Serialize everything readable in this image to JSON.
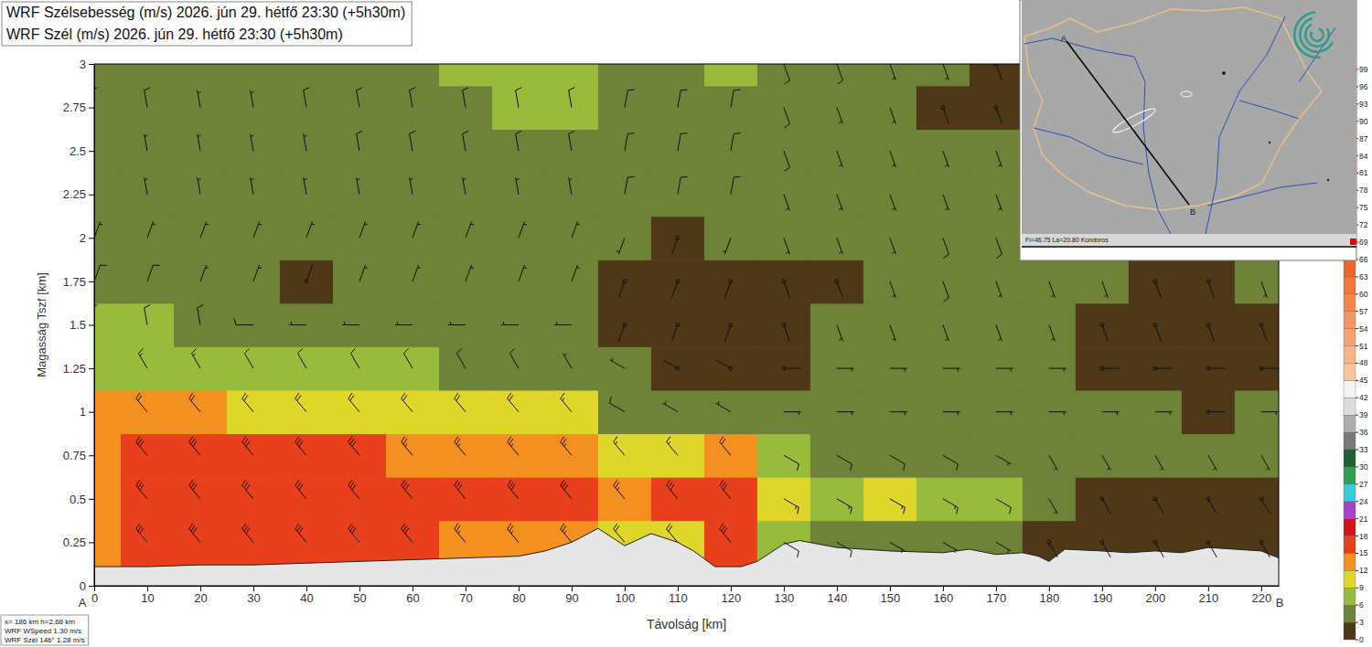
{
  "chart_data": {
    "type": "cross_section",
    "title": "WRF Szélsebesség (m/s) 2026. jún 29. hétfő 23:30 (+5h30m)",
    "subtitle": "WRF Szél (m/s) 2026. jún 29. hétfő 23:30 (+5h30m)",
    "x_label": "Távolság [km]",
    "y_label": "Magasság Tszf [km]",
    "section_labels": [
      "A",
      "B"
    ],
    "inset_label": "Fi=46.75 La=20.80 Kondoros",
    "info": [
      "x= 186 km h=2.68 km",
      "WRF WSpeed 1.30 m/s",
      "WRF Szél 146° 1.28 m/s"
    ],
    "grid": false,
    "xlim": [
      0,
      223.3
    ],
    "xticks": [
      0,
      10,
      20,
      30,
      40,
      50,
      60,
      70,
      80,
      90,
      100,
      110,
      120,
      130,
      140,
      150,
      160,
      170,
      180,
      190,
      200,
      210,
      220
    ],
    "ylim": [
      0,
      3
    ],
    "yticks": [
      0,
      0.25,
      0.5,
      0.75,
      1,
      1.25,
      1.5,
      1.75,
      2,
      2.25,
      2.5,
      2.75,
      3
    ],
    "x": [
      0,
      10,
      20,
      30,
      40,
      50,
      60,
      70,
      80,
      90,
      100,
      110,
      120,
      130,
      140,
      150,
      160,
      170,
      180,
      190,
      200,
      210,
      220
    ],
    "y": [
      0.25,
      0.5,
      0.75,
      1,
      1.25,
      1.5,
      1.75,
      2,
      2.25,
      2.5,
      2.75,
      3
    ],
    "values": [
      [
        14,
        15,
        15,
        15,
        15,
        15,
        15,
        14,
        13,
        13,
        11,
        10,
        15,
        6,
        5,
        4,
        4,
        4,
        2,
        2,
        2,
        2,
        2
      ],
      [
        14,
        15,
        16,
        16,
        16,
        17,
        17,
        16,
        16,
        15,
        14,
        15,
        16,
        9,
        8,
        9,
        8,
        7,
        3,
        2,
        2,
        2,
        2
      ],
      [
        14,
        15,
        15,
        15,
        15,
        15,
        14,
        13,
        13,
        13,
        9,
        9,
        12,
        6,
        5,
        5,
        5,
        4,
        3,
        3,
        3,
        3,
        3
      ],
      [
        12,
        12,
        12,
        11,
        11,
        11,
        10,
        10,
        10,
        9,
        5,
        4,
        4,
        4,
        4,
        4,
        3,
        3,
        3,
        3,
        3,
        2,
        3
      ],
      [
        8,
        8,
        8,
        7,
        7,
        6,
        6,
        5,
        5,
        4,
        3,
        2,
        2,
        2,
        3,
        3,
        3,
        3,
        3,
        2,
        2,
        1,
        2
      ],
      [
        6,
        6,
        5,
        5,
        4,
        4,
        4,
        4,
        4,
        3,
        2,
        2,
        2,
        2,
        3,
        4,
        4,
        3,
        3,
        2,
        2,
        1,
        2
      ],
      [
        5,
        5,
        4,
        4,
        2,
        4,
        4,
        4,
        4,
        3,
        2,
        2,
        2,
        2,
        2,
        4,
        5,
        4,
        3,
        3,
        2,
        2,
        3
      ],
      [
        4,
        4,
        3,
        3,
        3,
        3,
        3,
        3,
        3,
        3,
        3,
        2,
        3,
        3,
        3,
        4,
        5,
        5,
        4,
        3,
        2,
        2,
        3
      ],
      [
        4,
        4,
        3,
        3,
        3,
        4,
        4,
        4,
        4,
        4,
        5,
        5,
        5,
        4,
        4,
        4,
        4,
        4,
        3,
        2,
        2,
        3,
        3
      ],
      [
        4,
        4,
        3,
        3,
        4,
        5,
        5,
        5,
        5,
        5,
        5,
        5,
        5,
        5,
        4,
        4,
        3,
        3,
        2,
        3,
        3,
        3,
        3
      ],
      [
        5,
        5,
        4,
        4,
        5,
        5,
        5,
        5,
        6,
        6,
        5,
        5,
        5,
        5,
        4,
        3,
        2,
        2,
        2,
        3,
        3,
        4,
        4
      ],
      [
        5,
        5,
        5,
        5,
        5,
        5,
        5,
        6,
        7,
        6,
        5,
        5,
        6,
        5,
        5,
        4,
        3,
        2,
        2,
        3,
        4,
        4,
        4
      ]
    ],
    "direction": [
      [
        320,
        320,
        320,
        320,
        320,
        320,
        320,
        320,
        320,
        320,
        320,
        320,
        320,
        120,
        120,
        120,
        120,
        120,
        150,
        150,
        150,
        150,
        150
      ],
      [
        320,
        320,
        320,
        320,
        320,
        320,
        320,
        320,
        320,
        320,
        320,
        320,
        320,
        120,
        120,
        120,
        120,
        120,
        150,
        150,
        150,
        150,
        150
      ],
      [
        320,
        320,
        320,
        320,
        320,
        320,
        320,
        320,
        320,
        320,
        320,
        320,
        320,
        120,
        120,
        120,
        120,
        120,
        150,
        150,
        150,
        150,
        150
      ],
      [
        320,
        320,
        320,
        320,
        320,
        320,
        320,
        320,
        320,
        320,
        300,
        300,
        300,
        90,
        90,
        90,
        90,
        90,
        90,
        90,
        90,
        90,
        90
      ],
      [
        330,
        330,
        330,
        330,
        330,
        330,
        330,
        330,
        330,
        330,
        300,
        300,
        300,
        90,
        90,
        90,
        90,
        90,
        90,
        90,
        90,
        90,
        90
      ],
      [
        350,
        350,
        350,
        270,
        270,
        270,
        270,
        270,
        270,
        270,
        200,
        200,
        200,
        160,
        160,
        160,
        160,
        160,
        160,
        160,
        160,
        160,
        160
      ],
      [
        20,
        20,
        20,
        20,
        20,
        20,
        20,
        20,
        20,
        20,
        200,
        200,
        200,
        160,
        160,
        160,
        160,
        160,
        160,
        160,
        160,
        160,
        160
      ],
      [
        20,
        20,
        20,
        20,
        20,
        20,
        20,
        20,
        20,
        20,
        200,
        200,
        200,
        160,
        160,
        160,
        160,
        160,
        160,
        160,
        160,
        160,
        160
      ],
      [
        350,
        350,
        350,
        350,
        350,
        350,
        350,
        350,
        350,
        350,
        10,
        10,
        10,
        160,
        160,
        160,
        160,
        160,
        160,
        160,
        160,
        160,
        160
      ],
      [
        350,
        350,
        350,
        350,
        350,
        350,
        350,
        350,
        350,
        350,
        10,
        10,
        10,
        160,
        160,
        160,
        160,
        160,
        160,
        160,
        160,
        160,
        160
      ],
      [
        350,
        350,
        350,
        350,
        350,
        350,
        350,
        350,
        350,
        350,
        10,
        10,
        10,
        160,
        160,
        160,
        160,
        160,
        160,
        160,
        160,
        160,
        160
      ],
      [
        350,
        350,
        350,
        350,
        350,
        350,
        350,
        350,
        350,
        350,
        10,
        10,
        10,
        160,
        160,
        160,
        160,
        160,
        160,
        160,
        160,
        160,
        160
      ]
    ],
    "terrain": {
      "x": [
        0,
        10,
        20,
        30,
        40,
        50,
        60,
        70,
        80,
        85,
        90,
        95,
        100,
        105,
        110,
        113,
        117,
        122,
        125,
        130,
        133,
        140,
        150,
        160,
        165,
        170,
        175,
        178,
        180,
        183,
        190,
        195,
        200,
        205,
        210,
        215,
        220,
        223.3
      ],
      "height": [
        0.11,
        0.11,
        0.12,
        0.12,
        0.13,
        0.14,
        0.15,
        0.16,
        0.17,
        0.2,
        0.25,
        0.33,
        0.23,
        0.3,
        0.25,
        0.2,
        0.11,
        0.11,
        0.14,
        0.24,
        0.26,
        0.22,
        0.2,
        0.19,
        0.21,
        0.18,
        0.19,
        0.17,
        0.14,
        0.21,
        0.2,
        0.19,
        0.2,
        0.19,
        0.22,
        0.21,
        0.2,
        0.16
      ]
    },
    "colorbar": {
      "range": [
        0,
        99
      ],
      "ticks": [
        0,
        3,
        6,
        9,
        12,
        15,
        18,
        21,
        24,
        27,
        30,
        33,
        36,
        39,
        42,
        45,
        48,
        51,
        54,
        57,
        60,
        63,
        66,
        69,
        72,
        75,
        78,
        81,
        84,
        87,
        90,
        93,
        96,
        99
      ],
      "colors": [
        "#4e3818",
        "#6e8238",
        "#98bb3c",
        "#dfd62a",
        "#f49020",
        "#e8401c",
        "#d4141c",
        "#a742c9",
        "#37cbdc",
        "#2e9e4f",
        "#1f6131",
        "#7a7a7a",
        "#adadad",
        "#dcdcdc",
        "#f4f4f4",
        "#f9c39a",
        "#f8b486",
        "#f7a472",
        "#f6955f",
        "#f4854c",
        "#f2753a",
        "#f06628",
        "#e8481a",
        "#dc1c1c",
        "#cc1818",
        "#bc1414",
        "#ac1010",
        "#9c0c0c",
        "#8c0808",
        "#7c0404",
        "#6c0000",
        "#5c0000",
        "#4c0000"
      ]
    }
  }
}
